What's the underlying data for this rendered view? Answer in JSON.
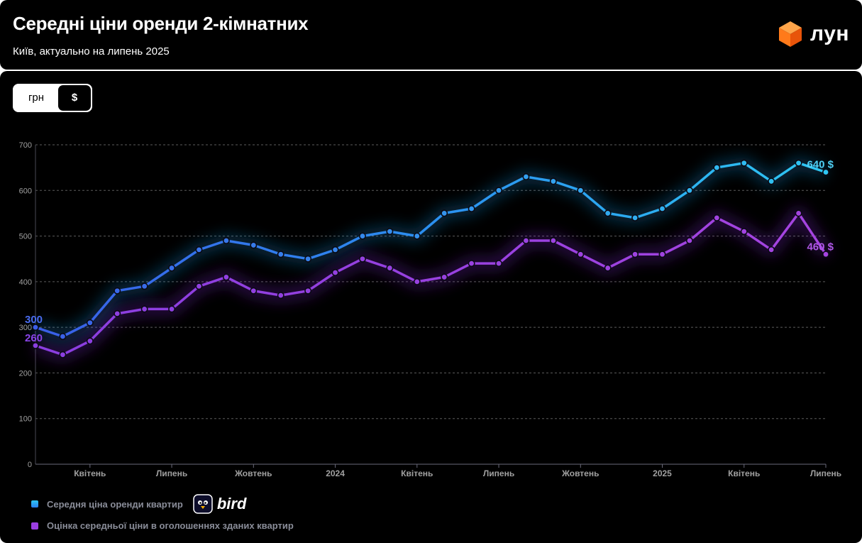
{
  "header": {
    "title": "Середні ціни оренди 2-кімнатних",
    "subtitle": "Київ, актуально на липень 2025",
    "logo_text": "лун"
  },
  "toggle": {
    "uah_label": "грн",
    "usd_label": "$",
    "selected": "usd"
  },
  "colors": {
    "background": "#000000",
    "series_avg": "#2db4f0",
    "series_avg_start": "#3a5ee8",
    "series_ads": "#9a3fe0",
    "grid": "#5a5a5a",
    "axis_text": "#9a9a9a",
    "logo_orange": "#ff6a13"
  },
  "legend": {
    "items": [
      {
        "label": "Середня ціна оренди квартир",
        "color": "#2a9df4"
      },
      {
        "label": "Оцінка середньої ціни в оголошеннях зданих квартир",
        "color": "#9b3ee2"
      }
    ],
    "brand_text": "bird",
    "brand_icon": "bird-logo-icon"
  },
  "chart_data": {
    "type": "line",
    "ylim": [
      0,
      700
    ],
    "y_ticks": [
      0,
      100,
      200,
      300,
      400,
      500,
      600,
      700
    ],
    "grid": true,
    "x_tick_labels": [
      {
        "index": 2,
        "label": "Квітень"
      },
      {
        "index": 5,
        "label": "Липень"
      },
      {
        "index": 8,
        "label": "Жовтень"
      },
      {
        "index": 11,
        "label": "2024"
      },
      {
        "index": 14,
        "label": "Квітень"
      },
      {
        "index": 17,
        "label": "Липень"
      },
      {
        "index": 20,
        "label": "Жовтень"
      },
      {
        "index": 23,
        "label": "2025"
      },
      {
        "index": 26,
        "label": "Квітень"
      },
      {
        "index": 29,
        "label": "Липень"
      }
    ],
    "series": [
      {
        "name": "Середня ціна оренди квартир",
        "values": [
          300,
          280,
          310,
          380,
          390,
          430,
          470,
          490,
          480,
          460,
          450,
          470,
          500,
          510,
          500,
          550,
          560,
          600,
          630,
          620,
          600,
          550,
          540,
          560,
          600,
          650,
          660,
          620,
          660,
          640
        ],
        "start_label": "300",
        "end_label": "640 $"
      },
      {
        "name": "Оцінка середньої ціни в оголошеннях зданих квартир",
        "values": [
          260,
          240,
          270,
          330,
          340,
          340,
          390,
          410,
          380,
          370,
          380,
          420,
          450,
          430,
          400,
          410,
          440,
          440,
          490,
          490,
          460,
          430,
          460,
          460,
          490,
          540,
          510,
          470,
          550,
          460
        ],
        "start_label": "260",
        "end_label": "460 $"
      }
    ]
  }
}
